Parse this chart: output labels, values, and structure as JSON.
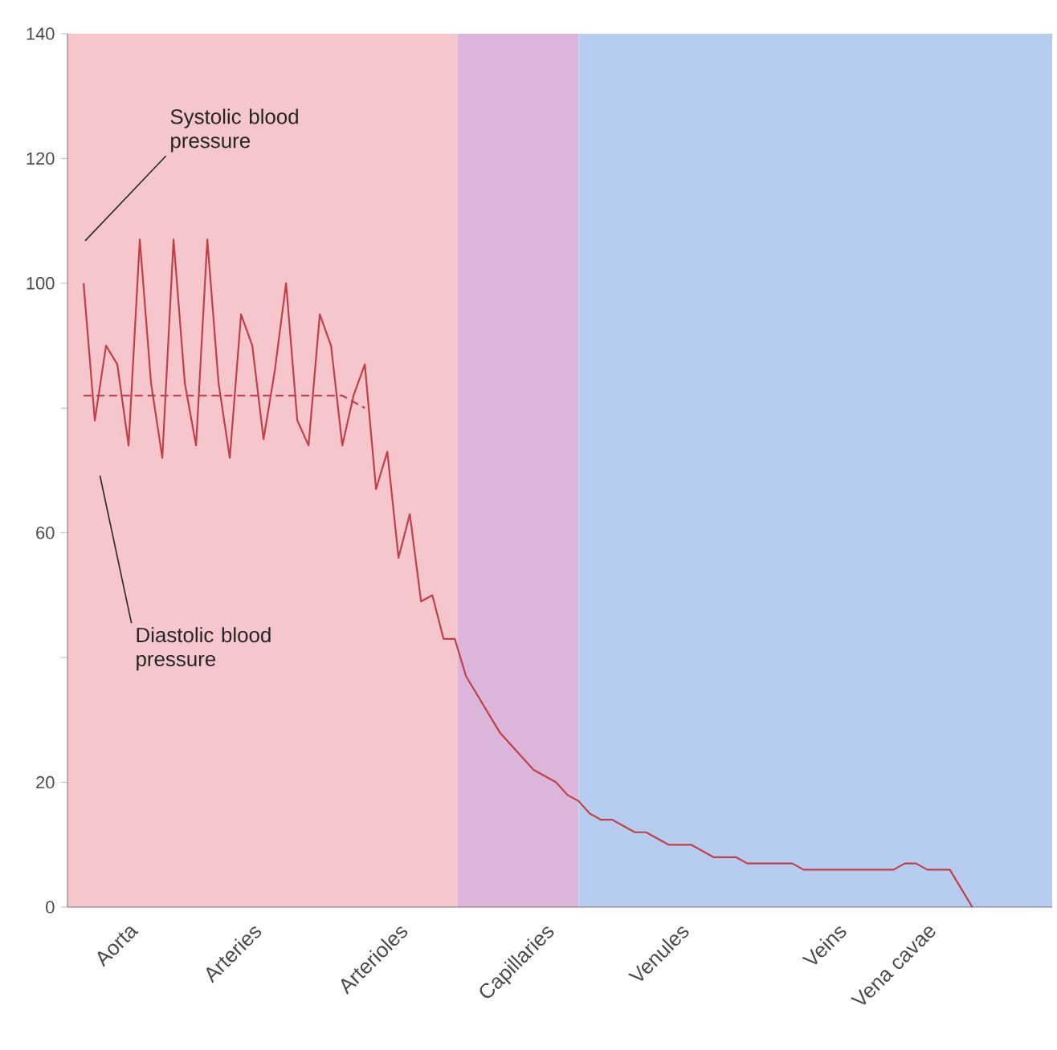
{
  "chart_data": {
    "type": "line",
    "categories": [
      null,
      null,
      null,
      null,
      null,
      "Aorta",
      null,
      null,
      null,
      null,
      null,
      null,
      null,
      null,
      null,
      null,
      "Arteries",
      null,
      null,
      null,
      null,
      null,
      null,
      null,
      null,
      null,
      null,
      null,
      null,
      "Arterioles",
      null,
      null,
      null,
      null,
      null,
      null,
      null,
      null,
      null,
      null,
      null,
      null,
      "Capillaries",
      null,
      null,
      null,
      null,
      null,
      null,
      null,
      null,
      null,
      null,
      null,
      "Venules",
      null,
      null,
      null,
      null,
      null,
      null,
      null,
      null,
      null,
      null,
      null,
      null,
      null,
      "Veins",
      null,
      null,
      null,
      null,
      null,
      null,
      null,
      "Vena cavae",
      null,
      null,
      null,
      null,
      null,
      null,
      null,
      null,
      null,
      null,
      null
    ],
    "ylim": [
      0,
      140
    ],
    "yticks": [
      0,
      20,
      {
        "value": 40,
        "label": null
      },
      60,
      {
        "value": 80,
        "label": null
      },
      100,
      120,
      140
    ],
    "series": [
      {
        "color": "#c0404a",
        "line_style": "solid",
        "values": [
          null,
          100,
          78,
          90,
          87,
          74,
          107,
          84,
          72,
          107,
          84,
          74,
          107,
          84,
          72,
          95,
          90,
          75,
          86,
          100,
          78,
          74,
          95,
          90,
          74,
          82,
          87,
          67,
          73,
          56,
          63,
          49,
          50,
          43,
          43,
          37,
          34,
          31,
          28,
          26,
          24,
          22,
          21,
          20,
          18,
          17,
          15,
          14,
          14,
          13,
          12,
          12,
          11,
          10,
          10,
          10,
          9,
          8,
          8,
          8,
          7,
          7,
          7,
          7,
          7,
          6,
          6,
          6,
          6,
          6,
          6,
          6,
          6,
          6,
          7,
          7,
          6,
          6,
          6,
          3,
          0,
          null,
          null,
          null,
          null,
          null,
          null,
          null
        ]
      },
      {
        "color": "#c0404a",
        "line_style": "dashed",
        "values": [
          null,
          82,
          82,
          82,
          82,
          82,
          82,
          82,
          82,
          82,
          82,
          82,
          82,
          82,
          82,
          82,
          82,
          82,
          82,
          82,
          82,
          82,
          82,
          82,
          82,
          81,
          80,
          null,
          null,
          null,
          null,
          null,
          null,
          null,
          null,
          null,
          null,
          null,
          null,
          null,
          null,
          null,
          null,
          null,
          null,
          null,
          null,
          null,
          null,
          null,
          null,
          null,
          null,
          null,
          null,
          null,
          null,
          null,
          null,
          null,
          null,
          null,
          null,
          null,
          null,
          null,
          null,
          null,
          null,
          null,
          null,
          null,
          null,
          null,
          null,
          null,
          null,
          null,
          null,
          null,
          null,
          null,
          null,
          null,
          null,
          null,
          null,
          null
        ]
      }
    ],
    "annotations": [
      "Systolic blood pressure",
      "Diastolic blood pressure"
    ],
    "marker": "none"
  }
}
